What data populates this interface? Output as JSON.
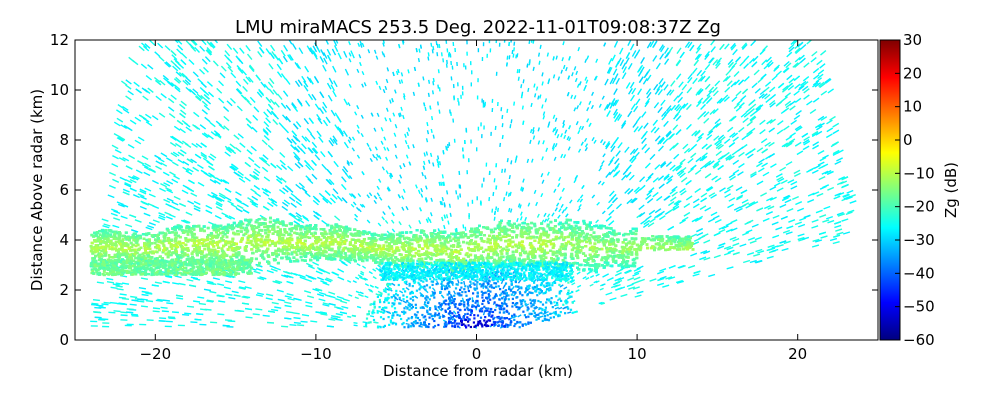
{
  "chart_data": {
    "type": "heatmap",
    "title": "LMU miraMACS 253.5 Deg. 2022-11-01T09:08:37Z  Zg",
    "xlabel": "Distance from radar (km)",
    "ylabel": "Distance Above radar  (km)",
    "xlim": [
      -25,
      25
    ],
    "ylim": [
      0,
      12
    ],
    "x_ticks": [
      -20,
      -10,
      0,
      10,
      20
    ],
    "x_tick_labels": [
      "−20",
      "−10",
      "0",
      "10",
      "20"
    ],
    "y_ticks": [
      0,
      2,
      4,
      6,
      8,
      10,
      12
    ],
    "y_tick_labels": [
      "0",
      "2",
      "4",
      "6",
      "8",
      "10",
      "12"
    ],
    "colorbar": {
      "label": "Zg (dB)",
      "range": [
        -60,
        30
      ],
      "ticks": [
        -60,
        -50,
        -40,
        -30,
        -20,
        -10,
        0,
        10,
        20,
        30
      ],
      "tick_labels": [
        "−60",
        "−50",
        "−40",
        "−30",
        "−20",
        "−10",
        "0",
        "10",
        "20",
        "30"
      ],
      "colormap": "jet"
    },
    "features": {
      "radar_origin": [
        0,
        0
      ],
      "scan_edge_left": [
        [
          -24,
          0.5
        ],
        [
          -22,
          10.5
        ],
        [
          -21,
          12
        ]
      ],
      "scan_edge_right": [
        [
          0,
          0
        ],
        [
          23,
          4
        ],
        [
          23.5,
          5.5
        ],
        [
          21.5,
          12
        ]
      ],
      "cloud_layer": {
        "x_range": [
          -24,
          13.5
        ],
        "base_km": [
          2.8,
          3.2
        ],
        "top_km": [
          4.4,
          4.9
        ],
        "zg_range_db": [
          -22,
          -8
        ]
      },
      "clear_air_region_zg_db": [
        -30,
        -25
      ],
      "near_radar_zg_db": [
        -55,
        -35
      ]
    }
  }
}
